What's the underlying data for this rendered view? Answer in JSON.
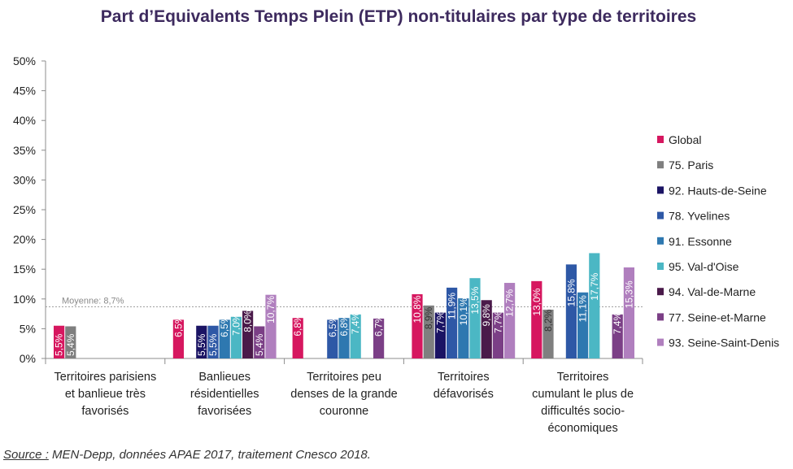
{
  "chart_data": {
    "type": "bar",
    "title": "Part d’Equivalents Temps Plein (ETP) non-titulaires par type de territoires",
    "ylim": [
      0,
      50
    ],
    "yticks": [
      "0%",
      "5%",
      "10%",
      "15%",
      "20%",
      "25%",
      "30%",
      "35%",
      "40%",
      "45%",
      "50%"
    ],
    "grid": false,
    "legend_position": "right",
    "categories": [
      [
        "Territoires parisiens",
        "et banlieue très",
        "favorisés"
      ],
      [
        "Banlieues",
        "résidentielles",
        "favorisées"
      ],
      [
        "Territoires peu",
        "denses de la grande",
        "couronne"
      ],
      [
        "Territoires",
        "défavorisés"
      ],
      [
        "Territoires",
        "cumulant le plus de",
        "difficultés socio-",
        "économiques"
      ]
    ],
    "series": [
      {
        "name": "Global",
        "color": "#d6175f",
        "values": [
          5.5,
          6.5,
          6.8,
          10.8,
          13.0
        ],
        "labels": [
          "5,5%",
          "6,5%",
          "6,8%",
          "10,8%",
          "13,0%"
        ]
      },
      {
        "name": "75. Paris",
        "color": "#7f7f7f",
        "values": [
          5.4,
          null,
          null,
          8.9,
          8.2
        ],
        "labels": [
          "5,4%",
          null,
          null,
          "8,9%",
          "8,2%"
        ]
      },
      {
        "name": "92. Hauts-de-Seine",
        "color": "#1b1464",
        "values": [
          null,
          5.5,
          null,
          7.7,
          null
        ],
        "labels": [
          null,
          "5,5%",
          null,
          "7,7%",
          null
        ]
      },
      {
        "name": "78. Yvelines",
        "color": "#2e58a6",
        "values": [
          null,
          5.5,
          6.5,
          11.9,
          15.8
        ],
        "labels": [
          null,
          "5,5%",
          "6,5%",
          "11,9%",
          "15,8%"
        ]
      },
      {
        "name": "91. Essonne",
        "color": "#2e78b0",
        "values": [
          null,
          6.5,
          6.8,
          10.1,
          11.1
        ],
        "labels": [
          null,
          "6,5%",
          "6,8%",
          "10,1%",
          "11,1%"
        ]
      },
      {
        "name": "95. Val-d'Oise",
        "color": "#4bb7c4",
        "values": [
          null,
          7.0,
          7.4,
          13.5,
          17.7
        ],
        "labels": [
          null,
          "7,0%",
          "7,4%",
          "13,5%",
          "17,7%"
        ]
      },
      {
        "name": "94. Val-de-Marne",
        "color": "#4a1a4a",
        "values": [
          null,
          8.0,
          null,
          9.8,
          null
        ],
        "labels": [
          null,
          "8,0%",
          null,
          "9,8%",
          null
        ]
      },
      {
        "name": "77. Seine-et-Marne",
        "color": "#7b3f86",
        "values": [
          null,
          5.4,
          6.7,
          7.7,
          7.4
        ],
        "labels": [
          null,
          "5,4%",
          "6,7%",
          "7,7%",
          "7,4%"
        ]
      },
      {
        "name": "93. Seine-Saint-Denis",
        "color": "#b07fbe",
        "values": [
          null,
          10.7,
          null,
          12.7,
          15.3
        ],
        "labels": [
          null,
          "10,7%",
          null,
          "12,7%",
          "15,3%"
        ]
      }
    ],
    "average": {
      "value": 8.7,
      "label": "Moyenne: 8,7%"
    }
  },
  "source": {
    "prefix": "Source :",
    "text": " MEN-Depp, données APAE 2017, traitement Cnesco 2018."
  }
}
